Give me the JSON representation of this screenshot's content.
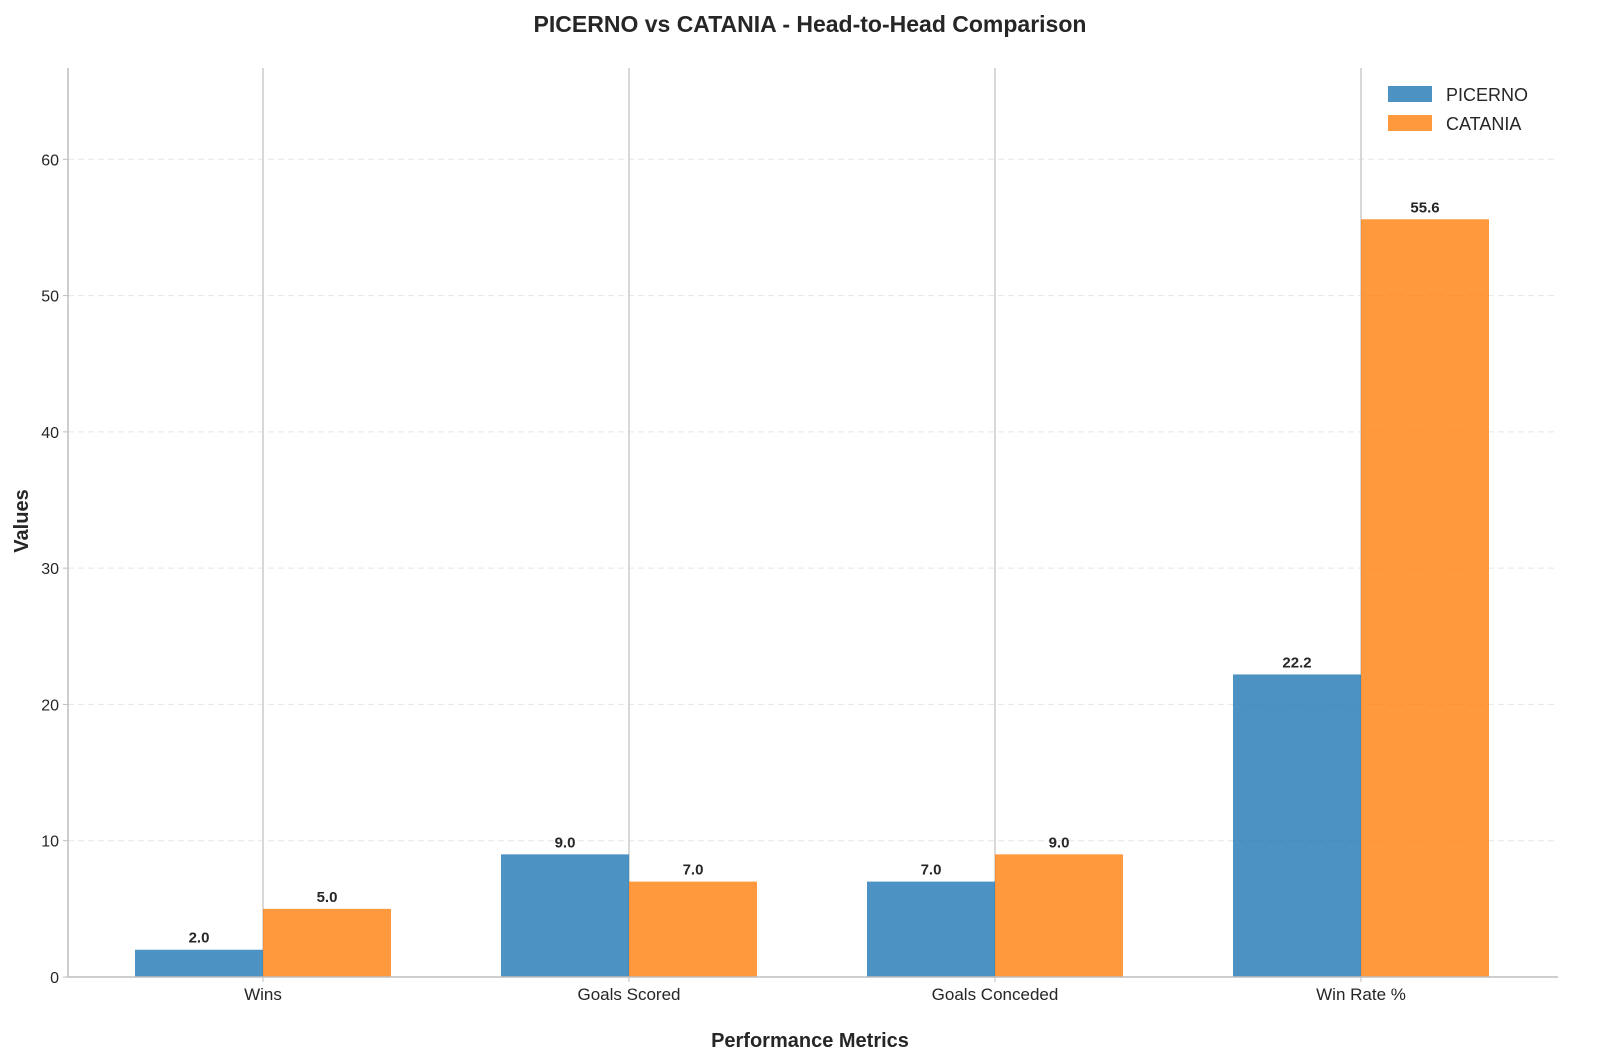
{
  "chart_data": {
    "type": "bar",
    "title": "PICERNO vs CATANIA - Head-to-Head Comparison",
    "xlabel": "Performance Metrics",
    "ylabel": "Values",
    "categories": [
      "Wins",
      "Goals Scored",
      "Goals Conceded",
      "Win Rate %"
    ],
    "series": [
      {
        "name": "PICERNO",
        "values": [
          2.0,
          9.0,
          7.0,
          22.2
        ],
        "labels": [
          "2.0",
          "9.0",
          "7.0",
          "22.2"
        ],
        "color": "#1f77b4"
      },
      {
        "name": "CATANIA",
        "values": [
          5.0,
          7.0,
          9.0,
          55.6
        ],
        "labels": [
          "5.0",
          "7.0",
          "9.0",
          "55.6"
        ],
        "color": "#ff7f0e"
      }
    ],
    "ylim": [
      0,
      66.7
    ],
    "yticks": [
      0,
      10,
      20,
      30,
      40,
      50,
      60
    ],
    "ytick_labels": [
      "0",
      "10",
      "20",
      "30",
      "40",
      "50",
      "60"
    ],
    "grid": true,
    "legend_position": "top-right"
  }
}
